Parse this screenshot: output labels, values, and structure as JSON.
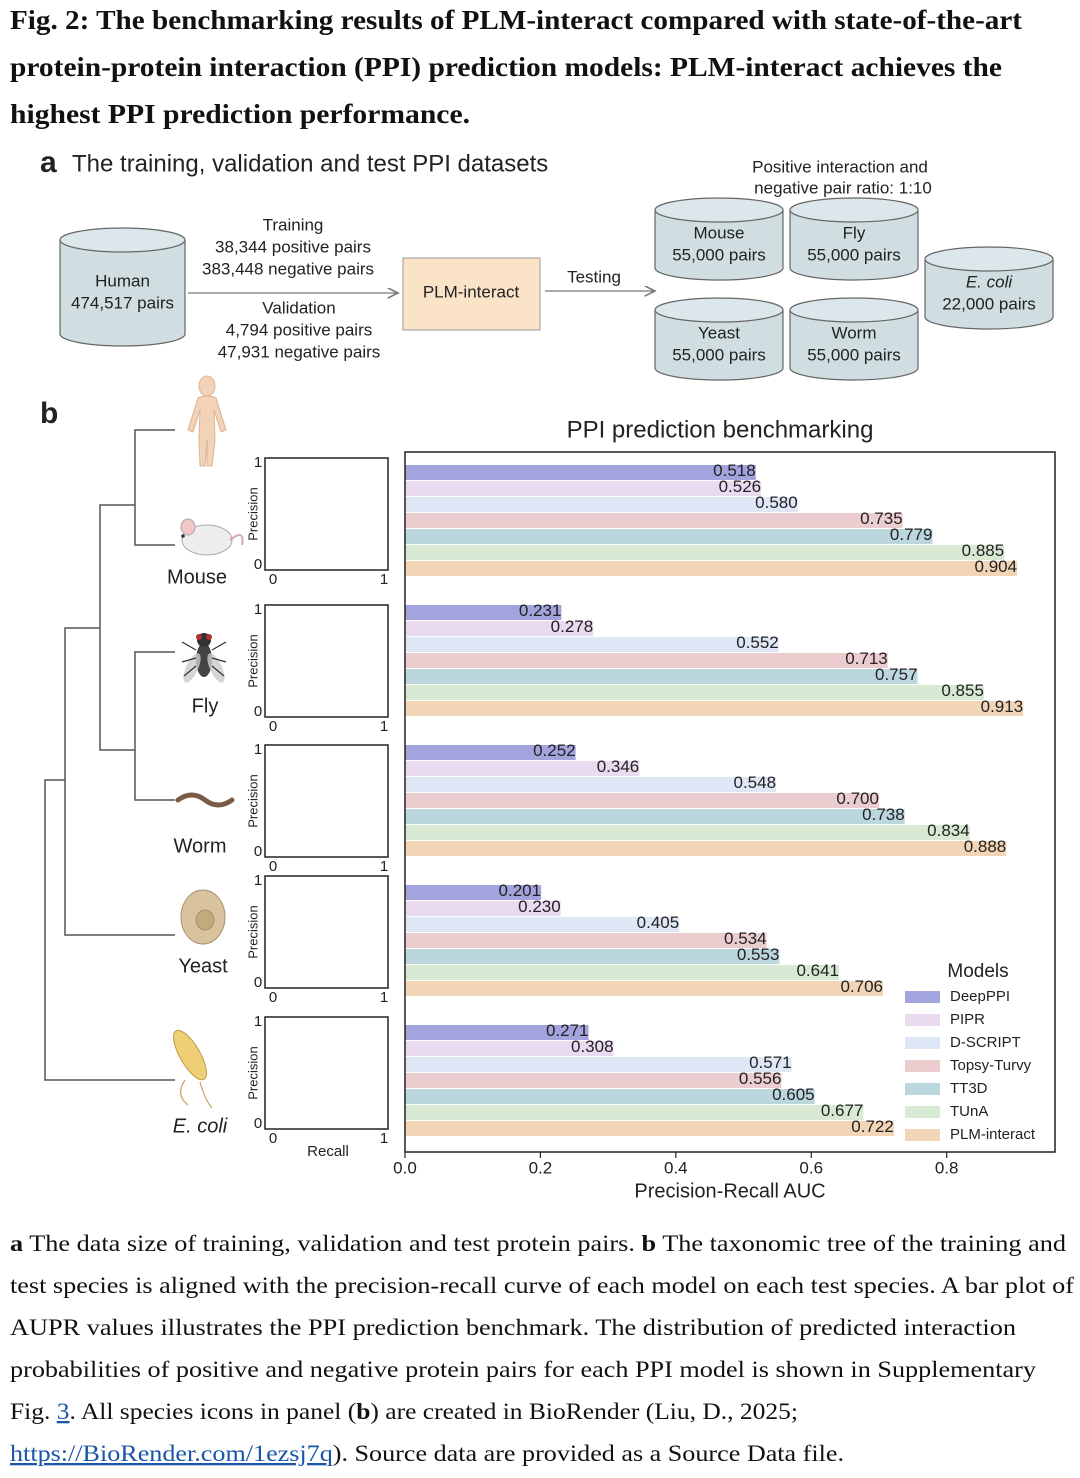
{
  "figure_title": [
    "Fig. 2: The benchmarking results of PLM-interact compared with state-of-the-art",
    "protein-protein interaction (PPI) prediction models: PLM-interact achieves the",
    "highest PPI prediction performance."
  ],
  "panel_a": {
    "label": "a",
    "title": "The training, validation and test PPI datasets",
    "source": {
      "name": "Human",
      "pairs": "474,517 pairs"
    },
    "training": [
      "Training",
      "38,344 positive pairs",
      "383,448 negative pairs"
    ],
    "validation": [
      "Validation",
      "4,794 positive pairs",
      "47,931 negative pairs"
    ],
    "model": "PLM-interact",
    "testing": "Testing",
    "ratio_note": [
      "Positive interaction and",
      "negative pair ratio: 1:10"
    ],
    "test_sets": [
      {
        "name": "Mouse",
        "pairs": "55,000 pairs"
      },
      {
        "name": "Fly",
        "pairs": "55,000 pairs"
      },
      {
        "name": "Yeast",
        "pairs": "55,000 pairs"
      },
      {
        "name": "Worm",
        "pairs": "55,000 pairs"
      },
      {
        "name": "E. coli",
        "pairs": "22,000 pairs"
      }
    ]
  },
  "panel_b_label": "b",
  "insets": {
    "ylabel": "Precision",
    "xlabel": "Recall",
    "ticks": [
      0,
      1
    ]
  },
  "chart_data": {
    "type": "bar",
    "orientation": "horizontal",
    "title": "PPI prediction benchmarking",
    "xlabel": "Precision-Recall AUC",
    "categories": [
      "Mouse",
      "Fly",
      "Worm",
      "Yeast",
      "E. coli"
    ],
    "series": [
      {
        "name": "DeepPPI",
        "color": "#a3a3de",
        "values": [
          0.518,
          0.231,
          0.252,
          0.201,
          0.271
        ],
        "value_labels": [
          "0.518",
          "0.231",
          "0.252",
          "0.201",
          "0.271"
        ]
      },
      {
        "name": "PIPR",
        "color": "#eadaf0",
        "values": [
          0.526,
          0.278,
          0.346,
          0.23,
          0.308
        ],
        "value_labels": [
          "0.526",
          "0.278",
          "0.346",
          "0.230",
          "0.308"
        ]
      },
      {
        "name": "D-SCRIPT",
        "color": "#dfe7f7",
        "values": [
          0.58,
          0.552,
          0.548,
          0.405,
          0.571
        ],
        "value_labels": [
          "0.580",
          "0.552",
          "0.548",
          "0.405",
          "0.571"
        ]
      },
      {
        "name": "Topsy-Turvy",
        "color": "#eccdcf",
        "values": [
          0.735,
          0.713,
          0.7,
          0.534,
          0.556
        ],
        "value_labels": [
          "0.735",
          "0.713",
          "0.700",
          "0.534",
          "0.556"
        ]
      },
      {
        "name": "TT3D",
        "color": "#bcd6dd",
        "values": [
          0.779,
          0.757,
          0.738,
          0.553,
          0.605
        ],
        "value_labels": [
          "0.779",
          "0.757",
          "0.738",
          "0.553",
          "0.605"
        ]
      },
      {
        "name": "TUnA",
        "color": "#d8e9d4",
        "values": [
          0.885,
          0.855,
          0.834,
          0.641,
          0.677
        ],
        "value_labels": [
          "0.885",
          "0.855",
          "0.834",
          "0.641",
          "0.677"
        ]
      },
      {
        "name": "PLM-interact",
        "color": "#f2d5b6",
        "values": [
          0.904,
          0.913,
          0.888,
          0.706,
          0.722
        ],
        "value_labels": [
          "0.904",
          "0.913",
          "0.888",
          "0.706",
          "0.722"
        ]
      }
    ],
    "xlim": [
      0,
      0.96
    ],
    "xticks": [
      {
        "value": 0,
        "label": "0.0"
      },
      0.2,
      0.4,
      0.6,
      0.8
    ],
    "legend_title": "Models",
    "legend": "lower right"
  },
  "caption": [
    [
      "a",
      " The data size of training, validation and test protein pairs. ",
      "b",
      " The taxonomic tree of the training and"
    ],
    [
      "test species is aligned with the precision-recall curve of each model on each test species. A bar plot of"
    ],
    [
      "AUPR values illustrates the PPI prediction benchmark. The distribution of predicted interaction"
    ],
    [
      "probabilities of positive and negative protein pairs for each PPI model is shown in Supplementary"
    ],
    [
      "Fig. ",
      "3",
      ". All species icons in panel (",
      "b",
      ") are created in BioRender (Liu, D., 2025;"
    ],
    [
      "https://BioRender.com/1ezsj7q",
      "). Source data are provided as a Source Data file."
    ]
  ]
}
